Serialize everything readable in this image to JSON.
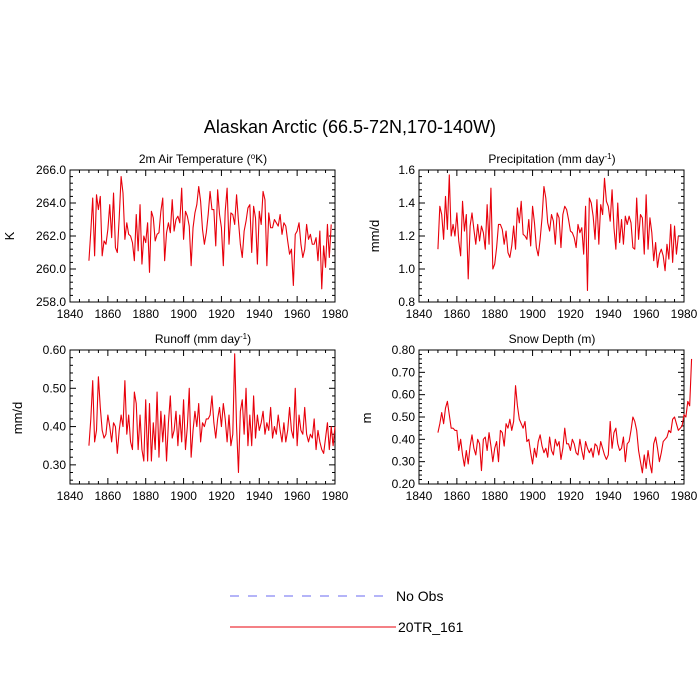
{
  "figure": {
    "title": "Alaskan Arctic (66.5-72N,170-140W)"
  },
  "legend": {
    "entries": [
      {
        "label": "No Obs",
        "color": "#6a6af0",
        "dash": true
      },
      {
        "label": "20TR_161",
        "color": "#e8000b",
        "dash": false
      }
    ]
  },
  "chart_data": [
    {
      "type": "line",
      "title": "2m Air Temperature (°K)",
      "title_text": "2m Air Temperature (",
      "title_sup": "o",
      "title_tail": "K)",
      "ylabel": "K",
      "xlim": [
        1840,
        1980
      ],
      "ylim": [
        258,
        266
      ],
      "xticks": [
        1840,
        1860,
        1880,
        1900,
        1920,
        1940,
        1960,
        1980
      ],
      "yticks": [
        258.0,
        260.0,
        262.0,
        264.0,
        266.0
      ],
      "ytick_labels": [
        "258.0",
        "260.0",
        "262.0",
        "264.0",
        "266.0"
      ],
      "series": [
        {
          "name": "20TR_161",
          "x_start": 1850,
          "values": [
            260.5,
            262.3,
            264.3,
            260.8,
            264.5,
            263.6,
            264.4,
            260.8,
            261.7,
            261.5,
            262.4,
            263.9,
            261.9,
            264.6,
            261.3,
            261.0,
            263.1,
            265.6,
            264.6,
            261.8,
            262.8,
            262.1,
            262.0,
            261.6,
            260.5,
            263.3,
            261.1,
            263.9,
            260.3,
            262.0,
            261.6,
            262.8,
            259.8,
            263.5,
            263.1,
            261.7,
            262.1,
            262.2,
            263.5,
            264.3,
            260.5,
            262.2,
            262.8,
            262.2,
            264.2,
            262.3,
            263.0,
            263.2,
            262.8,
            264.9,
            261.8,
            263.5,
            263.2,
            262.6,
            260.2,
            262.5,
            263.4,
            263.9,
            265.0,
            264.1,
            262.4,
            261.5,
            262.2,
            263.3,
            264.7,
            263.6,
            263.6,
            261.4,
            264.8,
            263.3,
            262.5,
            260.2,
            263.5,
            264.9,
            261.5,
            263.4,
            263.3,
            262.7,
            264.5,
            262.9,
            261.5,
            260.7,
            262.3,
            262.9,
            263.7,
            263.9,
            261.0,
            263.8,
            263.1,
            260.3,
            263.5,
            262.7,
            264.7,
            264.2,
            260.2,
            263.4,
            262.5,
            262.5,
            263.0,
            262.8,
            262.6,
            263.3,
            262.1,
            262.8,
            262.6,
            261.7,
            260.9,
            261.2,
            259.0,
            262.1,
            262.3,
            262.8,
            261.5,
            260.7,
            261.2,
            262.7,
            261.8,
            262.1,
            261.5,
            261.5,
            261.9,
            260.5,
            262.3,
            258.8,
            261.4,
            260.1,
            262.7,
            260.7,
            262.7
          ]
        }
      ]
    },
    {
      "type": "line",
      "title": "Precipitation (mm day-1)",
      "title_text": "Precipitation (mm day",
      "title_sup": "-1",
      "title_tail": ")",
      "ylabel": "mm/d",
      "xlim": [
        1840,
        1980
      ],
      "ylim": [
        0.8,
        1.6
      ],
      "xticks": [
        1840,
        1860,
        1880,
        1900,
        1920,
        1940,
        1960,
        1980
      ],
      "yticks": [
        0.8,
        1.0,
        1.2,
        1.4,
        1.6
      ],
      "ytick_labels": [
        "0.8",
        "1.0",
        "1.2",
        "1.4",
        "1.6"
      ],
      "series": [
        {
          "name": "20TR_161",
          "x_start": 1850,
          "values": [
            1.12,
            1.38,
            1.33,
            1.18,
            1.44,
            1.24,
            1.57,
            1.2,
            1.27,
            1.2,
            1.34,
            1.17,
            1.08,
            1.41,
            1.23,
            1.33,
            0.94,
            1.26,
            1.34,
            1.24,
            1.15,
            1.27,
            1.17,
            1.26,
            1.22,
            1.12,
            1.39,
            1.15,
            1.49,
            1.0,
            1.03,
            1.13,
            1.27,
            1.27,
            1.24,
            1.15,
            1.23,
            1.1,
            1.07,
            1.14,
            1.26,
            1.12,
            1.37,
            1.28,
            1.41,
            1.21,
            1.2,
            1.18,
            1.3,
            1.14,
            1.38,
            1.28,
            1.13,
            1.08,
            1.18,
            1.31,
            1.5,
            1.43,
            1.28,
            1.23,
            1.33,
            1.29,
            1.15,
            1.34,
            1.31,
            1.13,
            1.33,
            1.38,
            1.36,
            1.3,
            1.23,
            1.22,
            1.19,
            1.13,
            1.27,
            1.22,
            1.25,
            1.09,
            1.38,
            0.87,
            1.43,
            1.4,
            1.32,
            1.18,
            1.42,
            1.15,
            1.39,
            1.33,
            1.55,
            1.41,
            1.38,
            1.29,
            1.48,
            1.25,
            1.12,
            1.4,
            1.16,
            1.3,
            1.15,
            1.32,
            1.27,
            1.32,
            1.28,
            1.13,
            1.12,
            1.43,
            1.18,
            1.33,
            1.31,
            1.09,
            1.45,
            1.12,
            1.31,
            1.22,
            1.05,
            1.16,
            1.01,
            1.09,
            1.12,
            1.08,
            0.99,
            1.15,
            1.06,
            1.27,
            1.04,
            1.26,
            1.09,
            1.2
          ]
        }
      ]
    },
    {
      "type": "line",
      "title": "Runoff (mm day-1)",
      "title_text": "Runoff (mm day",
      "title_sup": "-1",
      "title_tail": ")",
      "ylabel": "mm/d",
      "xlim": [
        1840,
        1980
      ],
      "ylim": [
        0.25,
        0.6
      ],
      "xticks": [
        1840,
        1860,
        1880,
        1900,
        1920,
        1940,
        1960,
        1980
      ],
      "yticks": [
        0.3,
        0.4,
        0.5,
        0.6
      ],
      "ytick_labels": [
        "0.30",
        "0.40",
        "0.50",
        "0.60"
      ],
      "series": [
        {
          "name": "20TR_161",
          "x_start": 1850,
          "values": [
            0.35,
            0.42,
            0.52,
            0.36,
            0.39,
            0.53,
            0.45,
            0.39,
            0.37,
            0.38,
            0.43,
            0.4,
            0.36,
            0.41,
            0.4,
            0.33,
            0.39,
            0.43,
            0.4,
            0.52,
            0.38,
            0.43,
            0.36,
            0.34,
            0.49,
            0.46,
            0.34,
            0.43,
            0.34,
            0.31,
            0.47,
            0.31,
            0.46,
            0.31,
            0.41,
            0.34,
            0.49,
            0.32,
            0.44,
            0.36,
            0.43,
            0.31,
            0.41,
            0.48,
            0.37,
            0.39,
            0.44,
            0.35,
            0.43,
            0.36,
            0.47,
            0.34,
            0.4,
            0.5,
            0.32,
            0.39,
            0.44,
            0.4,
            0.46,
            0.36,
            0.41,
            0.4,
            0.42,
            0.42,
            0.43,
            0.48,
            0.41,
            0.37,
            0.42,
            0.45,
            0.4,
            0.46,
            0.42,
            0.36,
            0.43,
            0.35,
            0.38,
            0.59,
            0.4,
            0.28,
            0.44,
            0.47,
            0.38,
            0.5,
            0.35,
            0.43,
            0.35,
            0.48,
            0.37,
            0.43,
            0.39,
            0.41,
            0.44,
            0.38,
            0.41,
            0.39,
            0.45,
            0.37,
            0.4,
            0.38,
            0.43,
            0.39,
            0.36,
            0.41,
            0.36,
            0.39,
            0.45,
            0.39,
            0.37,
            0.5,
            0.35,
            0.43,
            0.39,
            0.38,
            0.45,
            0.38,
            0.36,
            0.38,
            0.37,
            0.42,
            0.34,
            0.39,
            0.36,
            0.34,
            0.33,
            0.37,
            0.41,
            0.34,
            0.4,
            0.35,
            0.4
          ]
        }
      ]
    },
    {
      "type": "line",
      "title": "Snow Depth (m)",
      "title_text": "Snow Depth (m)",
      "title_sup": "",
      "title_tail": "",
      "ylabel": "m",
      "xlim": [
        1840,
        1980
      ],
      "ylim": [
        0.2,
        0.8
      ],
      "xticks": [
        1840,
        1860,
        1880,
        1900,
        1920,
        1940,
        1960,
        1980
      ],
      "yticks": [
        0.2,
        0.3,
        0.4,
        0.5,
        0.6,
        0.7,
        0.8
      ],
      "ytick_labels": [
        "0.20",
        "0.30",
        "0.40",
        "0.50",
        "0.60",
        "0.70",
        "0.80"
      ],
      "series": [
        {
          "name": "20TR_161",
          "x_start": 1850,
          "values": [
            0.43,
            0.47,
            0.52,
            0.47,
            0.54,
            0.57,
            0.51,
            0.45,
            0.45,
            0.44,
            0.44,
            0.35,
            0.4,
            0.33,
            0.28,
            0.35,
            0.29,
            0.37,
            0.42,
            0.36,
            0.33,
            0.4,
            0.38,
            0.26,
            0.4,
            0.41,
            0.35,
            0.43,
            0.37,
            0.3,
            0.36,
            0.39,
            0.3,
            0.44,
            0.43,
            0.37,
            0.47,
            0.45,
            0.49,
            0.44,
            0.48,
            0.64,
            0.55,
            0.49,
            0.47,
            0.45,
            0.48,
            0.39,
            0.4,
            0.34,
            0.29,
            0.36,
            0.32,
            0.39,
            0.42,
            0.37,
            0.34,
            0.36,
            0.32,
            0.41,
            0.35,
            0.33,
            0.4,
            0.37,
            0.39,
            0.31,
            0.36,
            0.45,
            0.38,
            0.38,
            0.35,
            0.4,
            0.38,
            0.34,
            0.33,
            0.4,
            0.35,
            0.31,
            0.39,
            0.36,
            0.34,
            0.36,
            0.32,
            0.38,
            0.37,
            0.33,
            0.39,
            0.36,
            0.33,
            0.31,
            0.33,
            0.48,
            0.36,
            0.43,
            0.45,
            0.38,
            0.35,
            0.36,
            0.41,
            0.3,
            0.38,
            0.39,
            0.44,
            0.5,
            0.48,
            0.44,
            0.35,
            0.3,
            0.25,
            0.33,
            0.27,
            0.35,
            0.29,
            0.25,
            0.38,
            0.41,
            0.36,
            0.3,
            0.34,
            0.39,
            0.4,
            0.41,
            0.44,
            0.43,
            0.49,
            0.5,
            0.47,
            0.44,
            0.45,
            0.46,
            0.51,
            0.5,
            0.57,
            0.55,
            0.76
          ]
        }
      ]
    }
  ]
}
